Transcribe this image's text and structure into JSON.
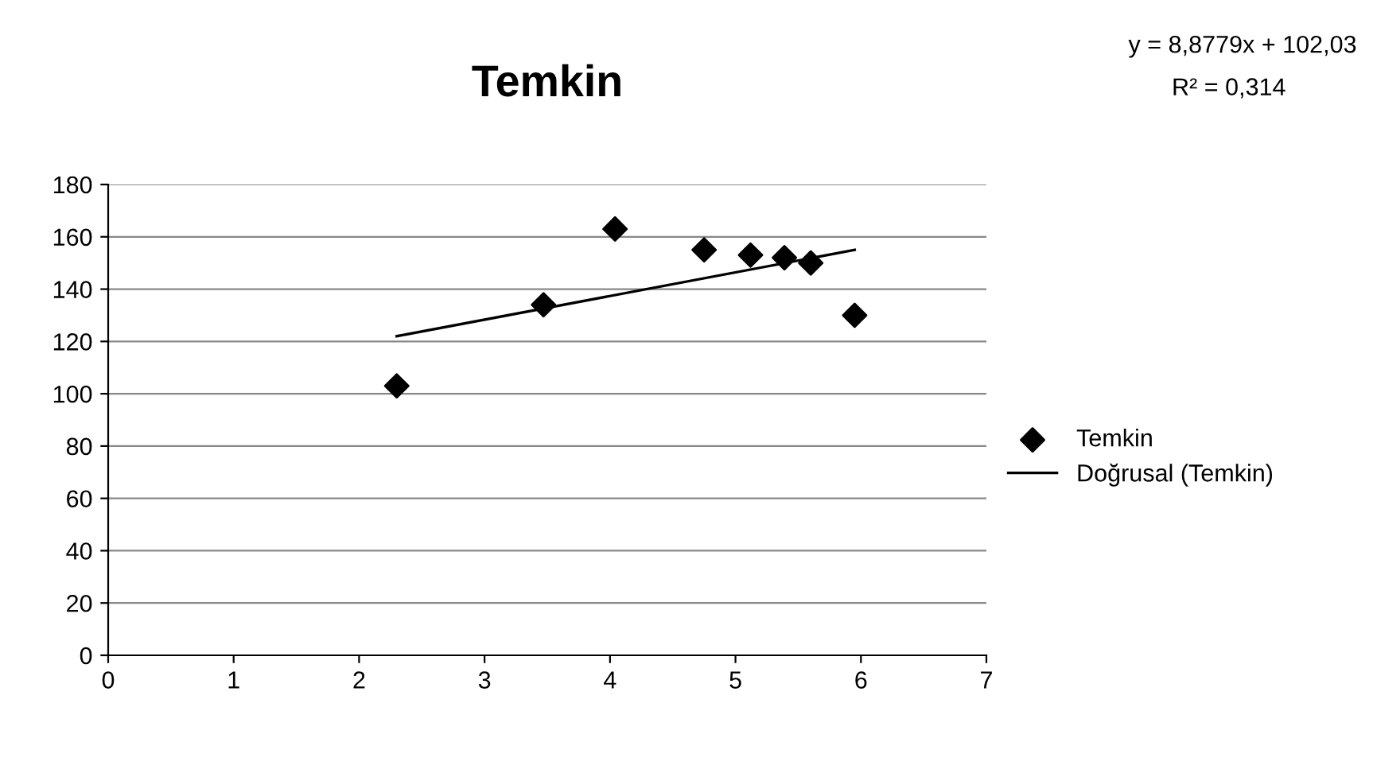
{
  "chart_data": {
    "type": "scatter",
    "title": "Temkin",
    "annotations": [
      "y = 8,8779x + 102,03",
      "R² = 0,314"
    ],
    "series": [
      {
        "name": "Temkin",
        "color": "#000000",
        "marker": "diamond",
        "x": [
          2.3,
          3.47,
          4.04,
          4.75,
          5.12,
          5.39,
          5.6,
          5.95
        ],
        "values": [
          103,
          134,
          163,
          155,
          153,
          152,
          150,
          130
        ]
      },
      {
        "name": "Doğrusal (Temkin)",
        "type": "line",
        "color": "#000000",
        "line_style": "solid",
        "x": [
          2.3,
          5.95
        ],
        "values": [
          122,
          155
        ]
      }
    ],
    "xlim": [
      0,
      7
    ],
    "xticks": [
      0,
      1,
      2,
      3,
      4,
      5,
      6,
      7
    ],
    "ylim": [
      0,
      180
    ],
    "yticks": [
      0,
      20,
      40,
      60,
      80,
      100,
      120,
      140,
      160,
      180
    ],
    "grid": "y",
    "legend": "right"
  }
}
